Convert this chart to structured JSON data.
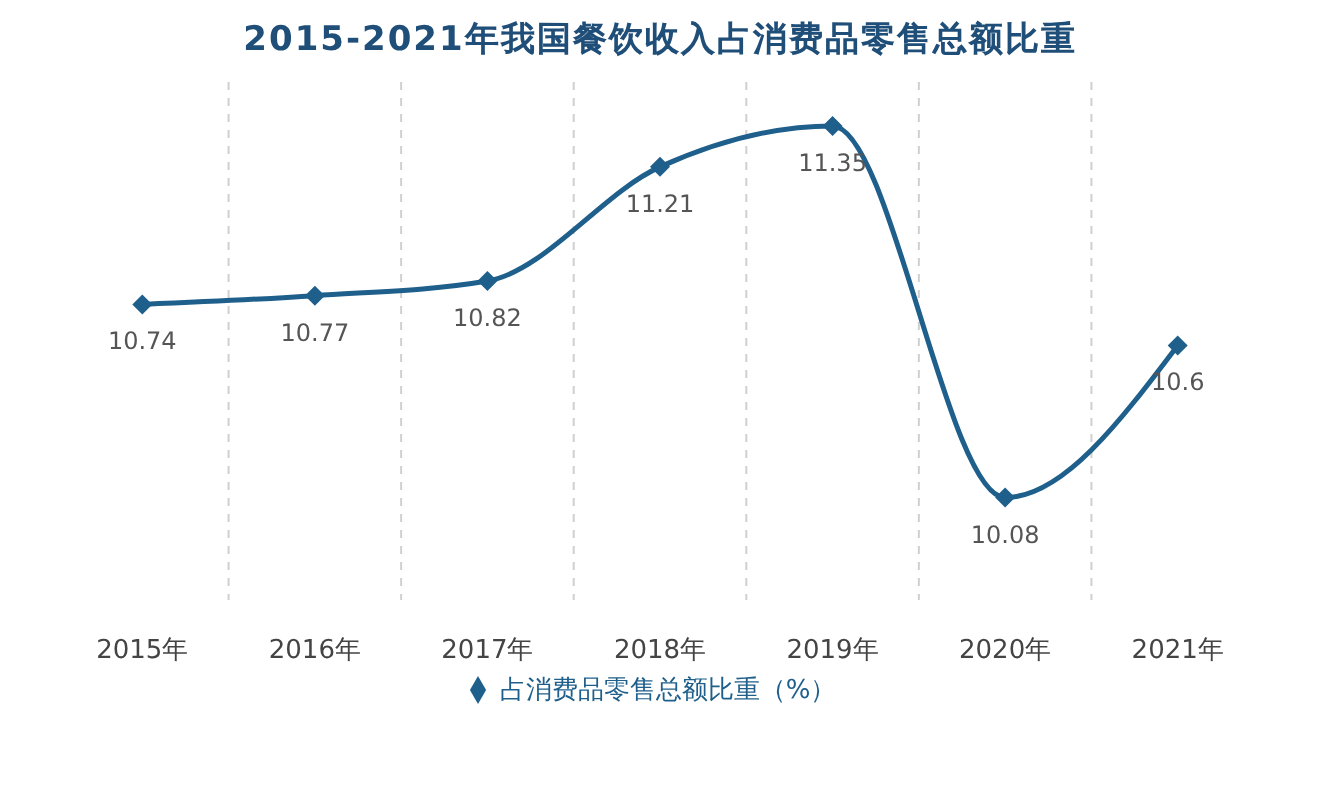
{
  "chart_data": {
    "type": "line",
    "title": "2015-2021年我国餐饮收入占消费品零售总额比重",
    "categories": [
      "2015年",
      "2016年",
      "2017年",
      "2018年",
      "2019年",
      "2020年",
      "2021年"
    ],
    "series": [
      {
        "name": "占消费品零售总额比重（%）",
        "color": "#1f5f8b",
        "values": [
          10.74,
          10.77,
          10.82,
          11.21,
          11.35,
          10.08,
          10.6
        ]
      }
    ],
    "data_labels": true,
    "grid": "x",
    "legend": "bottom",
    "marker": "diamond",
    "line_style": "solid"
  }
}
